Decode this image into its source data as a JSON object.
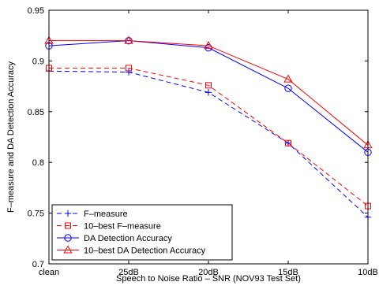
{
  "chart_data": {
    "type": "line",
    "title": "",
    "xlabel": "Speech to Noise Ratio – SNR (NOV93 Test Set)",
    "ylabel": "F–measure and DA Detection Accuracy",
    "categories": [
      "clean",
      "25dB",
      "20dB",
      "15dB",
      "10dB"
    ],
    "ylim": [
      0.7,
      0.95
    ],
    "yticks": [
      "0.7",
      "0.75",
      "0.8",
      "0.85",
      "0.9",
      "0.95"
    ],
    "grid": false,
    "legend_position": "bottom-left",
    "series": [
      {
        "name": "F–measure",
        "values": [
          0.89,
          0.889,
          0.869,
          0.819,
          0.746
        ],
        "color": "#0000ff",
        "dash": "dashed",
        "marker": "plus"
      },
      {
        "name": "10–best F–measure",
        "values": [
          0.893,
          0.893,
          0.876,
          0.819,
          0.757
        ],
        "color": "#ff0000",
        "dash": "dashed",
        "marker": "square"
      },
      {
        "name": "DA Detection Accuracy",
        "values": [
          0.915,
          0.92,
          0.913,
          0.873,
          0.81
        ],
        "color": "#0000ff",
        "dash": "solid",
        "marker": "circle"
      },
      {
        "name": "10–best DA Detection Accuracy",
        "values": [
          0.92,
          0.92,
          0.915,
          0.882,
          0.817
        ],
        "color": "#ff0000",
        "dash": "solid",
        "marker": "triangle"
      }
    ]
  }
}
